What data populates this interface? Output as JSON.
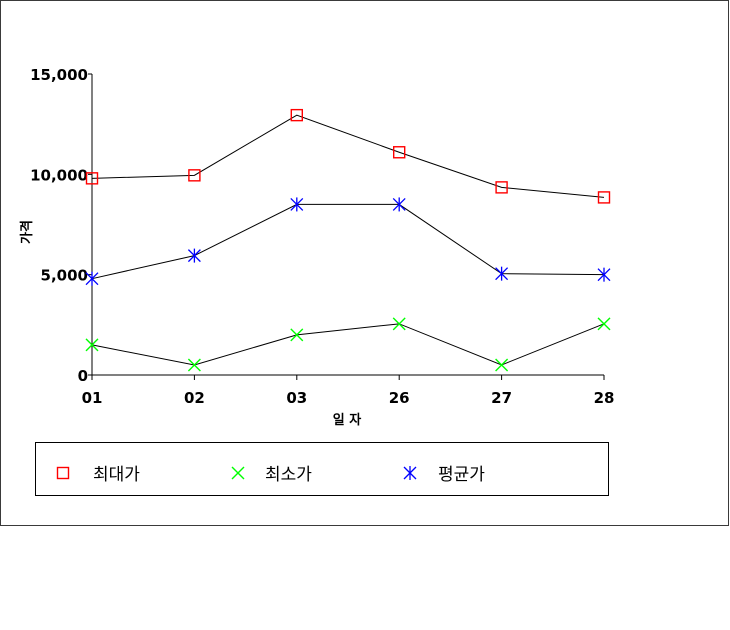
{
  "chart_data": {
    "type": "line",
    "title": "",
    "xlabel": "일 자",
    "ylabel": "가격",
    "categories": [
      "01",
      "02",
      "03",
      "26",
      "27",
      "28"
    ],
    "ylim": [
      0,
      15000
    ],
    "yticks": [
      "15,000",
      "10,000",
      "5,000",
      "0"
    ],
    "ytick_values": [
      15000,
      10000,
      5000,
      0
    ],
    "grid": false,
    "legend_position": "bottom",
    "series": [
      {
        "name": "최대가",
        "values": [
          9800,
          9950,
          12950,
          11100,
          9350,
          8850
        ],
        "color": "#ff0000",
        "marker": "square"
      },
      {
        "name": "최소가",
        "values": [
          1500,
          500,
          2000,
          2550,
          500,
          2550
        ],
        "color": "#00ff00",
        "marker": "x"
      },
      {
        "name": "평균가",
        "values": [
          4800,
          5950,
          8500,
          8500,
          5050,
          5000
        ],
        "color": "#0000ff",
        "marker": "star"
      }
    ],
    "line_color": "#000000"
  }
}
